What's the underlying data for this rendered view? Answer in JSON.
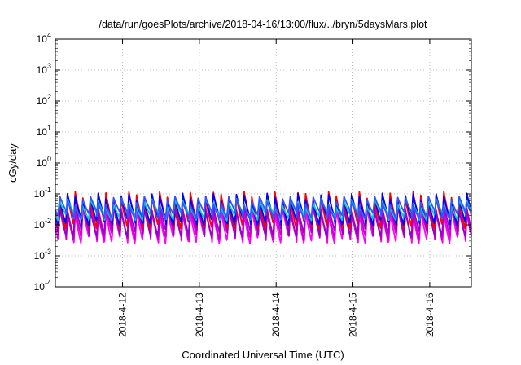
{
  "chart_data": {
    "type": "line",
    "title": "/data/run/goesPlots/archive/2018-04-16/13:00/flux/../bryn/5daysMars.plot",
    "xlabel": "Coordinated Universal Time (UTC)",
    "ylabel": "cGy/day",
    "yscale": "log",
    "ylim": [
      0.0001,
      10000
    ],
    "xlim": [
      "2018-04-11 03:00",
      "2018-04-16 13:00"
    ],
    "grid": true,
    "y_ticks": [
      {
        "base": "10",
        "exp": "-4"
      },
      {
        "base": "10",
        "exp": "-3"
      },
      {
        "base": "10",
        "exp": "-2"
      },
      {
        "base": "10",
        "exp": "-1"
      },
      {
        "base": "10",
        "exp": "0"
      },
      {
        "base": "10",
        "exp": "1"
      },
      {
        "base": "10",
        "exp": "2"
      },
      {
        "base": "10",
        "exp": "3"
      },
      {
        "base": "10",
        "exp": "4"
      }
    ],
    "x_ticks": [
      "2018-4-12",
      "2018-4-13",
      "2018-4-14",
      "2018-4-15",
      "2018-4-16"
    ],
    "cycles_per_day": 10,
    "series": [
      {
        "color": "#ff00ff",
        "peak": 0.03,
        "trough": 0.003
      },
      {
        "color": "#cc00cc",
        "peak": 0.035,
        "trough": 0.004
      },
      {
        "color": "#9900cc",
        "peak": 0.04,
        "trough": 0.005
      },
      {
        "color": "#ff0000",
        "peak": 0.085,
        "trough": 0.009
      },
      {
        "color": "#0000ff",
        "peak": 0.075,
        "trough": 0.012
      },
      {
        "color": "#00cccc",
        "peak": 0.05,
        "trough": 0.018
      },
      {
        "color": "#3355ff",
        "peak": 0.06,
        "trough": 0.02
      }
    ]
  }
}
